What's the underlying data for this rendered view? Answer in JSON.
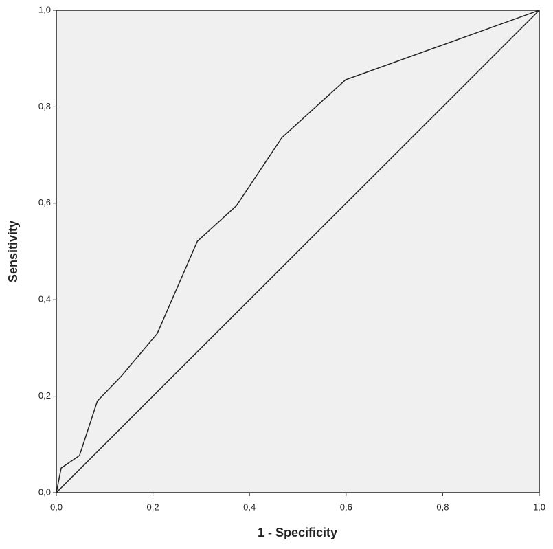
{
  "chart_data": {
    "type": "line",
    "x_label": "1 - Specificity",
    "y_label": "Sensitivity",
    "series": [
      {
        "color": "#222222",
        "x": [
          0,
          0.01,
          0.048,
          0.085,
          0.135,
          0.209,
          0.292,
          0.373,
          0.467,
          0.599,
          1
        ],
        "values": [
          0,
          0.051,
          0.077,
          0.19,
          0.242,
          0.33,
          0.521,
          0.595,
          0.736,
          0.856,
          1
        ]
      },
      {
        "color": "#222222",
        "x": [
          0,
          1
        ],
        "values": [
          0,
          1
        ]
      }
    ],
    "xlim": [
      0,
      1
    ],
    "ylim": [
      0,
      1
    ],
    "xticks": [
      {
        "value": 0,
        "label": "0,0"
      },
      {
        "value": 0.2,
        "label": "0,2"
      },
      {
        "value": 0.4,
        "label": "0,4"
      },
      {
        "value": 0.6,
        "label": "0,6"
      },
      {
        "value": 0.8,
        "label": "0,8"
      },
      {
        "value": 1,
        "label": "1,0"
      }
    ],
    "yticks": [
      {
        "value": 0,
        "label": "0,0"
      },
      {
        "value": 0.2,
        "label": "0,2"
      },
      {
        "value": 0.4,
        "label": "0,4"
      },
      {
        "value": 0.6,
        "label": "0,6"
      },
      {
        "value": 0.8,
        "label": "0,8"
      },
      {
        "value": 1,
        "label": "1,0"
      }
    ],
    "background": "#f0f0f0",
    "grid": false
  }
}
